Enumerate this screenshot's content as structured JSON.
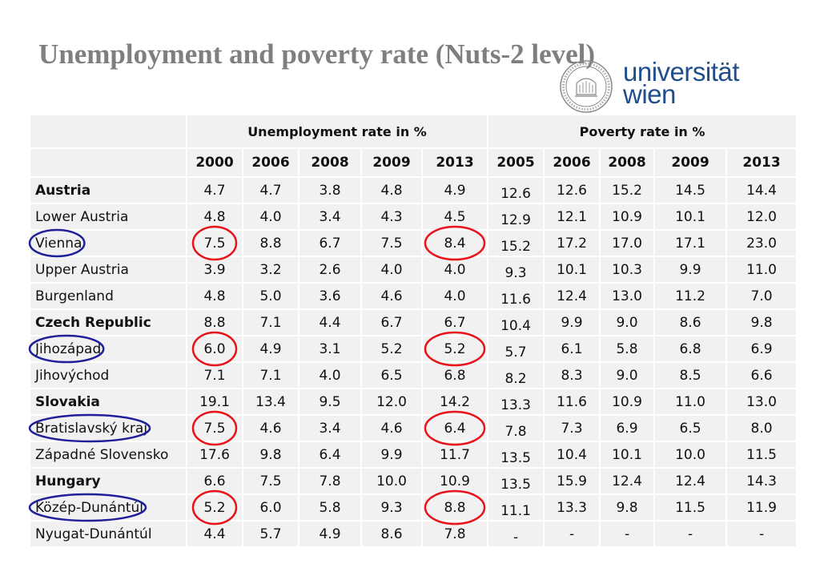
{
  "title": "Unemployment and poverty rate (Nuts-2 level)",
  "logo": {
    "line1": "universität",
    "line2": "wien"
  },
  "table": {
    "group_unemployment": "Unemployment rate in %",
    "group_poverty": "Poverty rate in %",
    "unemployment_years": [
      "2000",
      "2006",
      "2008",
      "2009",
      "2013"
    ],
    "poverty_years": [
      "2005",
      "2006",
      "2008",
      "2009",
      "2013"
    ],
    "rows": [
      {
        "region": "Austria",
        "bold": true,
        "unemployment": [
          "4.7",
          "4.7",
          "3.8",
          "4.8",
          "4.9"
        ],
        "poverty": [
          "12.6",
          "12.6",
          "15.2",
          "14.5",
          "14.4"
        ]
      },
      {
        "region": "Lower Austria",
        "bold": false,
        "unemployment": [
          "4.8",
          "4.0",
          "3.4",
          "4.3",
          "4.5"
        ],
        "poverty": [
          "12.9",
          "12.1",
          "10.9",
          "10.1",
          "12.0"
        ]
      },
      {
        "region": "Vienna",
        "bold": false,
        "unemployment": [
          "7.5",
          "8.8",
          "6.7",
          "7.5",
          "8.4"
        ],
        "poverty": [
          "15.2",
          "17.2",
          "17.0",
          "17.1",
          "23.0"
        ]
      },
      {
        "region": "Upper Austria",
        "bold": false,
        "unemployment": [
          "3.9",
          "3.2",
          "2.6",
          "4.0",
          "4.0"
        ],
        "poverty": [
          "9.3",
          "10.1",
          "10.3",
          "9.9",
          "11.0"
        ]
      },
      {
        "region": "Burgenland",
        "bold": false,
        "unemployment": [
          "4.8",
          "5.0",
          "3.6",
          "4.6",
          "4.0"
        ],
        "poverty": [
          "11.6",
          "12.4",
          "13.0",
          "11.2",
          "7.0"
        ]
      },
      {
        "region": "Czech Republic",
        "bold": true,
        "unemployment": [
          "8.8",
          "7.1",
          "4.4",
          "6.7",
          "6.7"
        ],
        "poverty": [
          "10.4",
          "9.9",
          "9.0",
          "8.6",
          "9.8"
        ]
      },
      {
        "region": "Jihozápad",
        "bold": false,
        "unemployment": [
          "6.0",
          "4.9",
          "3.1",
          "5.2",
          "5.2"
        ],
        "poverty": [
          "5.7",
          "6.1",
          "5.8",
          "6.8",
          "6.9"
        ]
      },
      {
        "region": "Jihovýchod",
        "bold": false,
        "unemployment": [
          "7.1",
          "7.1",
          "4.0",
          "6.5",
          "6.8"
        ],
        "poverty": [
          "8.2",
          "8.3",
          "9.0",
          "8.5",
          "6.6"
        ]
      },
      {
        "region": "Slovakia",
        "bold": true,
        "unemployment": [
          "19.1",
          "13.4",
          "9.5",
          "12.0",
          "14.2"
        ],
        "poverty": [
          "13.3",
          "11.6",
          "10.9",
          "11.0",
          "13.0"
        ]
      },
      {
        "region": "Bratislavský kraj",
        "bold": false,
        "unemployment": [
          "7.5",
          "4.6",
          "3.4",
          "4.6",
          "6.4"
        ],
        "poverty": [
          "7.8",
          "7.3",
          "6.9",
          "6.5",
          "8.0"
        ]
      },
      {
        "region": "Západné Slovensko",
        "bold": false,
        "unemployment": [
          "17.6",
          "9.8",
          "6.4",
          "9.9",
          "11.7"
        ],
        "poverty": [
          "13.5",
          "10.4",
          "10.1",
          "10.0",
          "11.5"
        ]
      },
      {
        "region": "Hungary",
        "bold": true,
        "unemployment": [
          "6.6",
          "7.5",
          "7.8",
          "10.0",
          "10.9"
        ],
        "poverty": [
          "13.5",
          "15.9",
          "12.4",
          "12.4",
          "14.3"
        ]
      },
      {
        "region": "Közép-Dunántúl",
        "bold": false,
        "unemployment": [
          "5.2",
          "6.0",
          "5.8",
          "9.3",
          "8.8"
        ],
        "poverty": [
          "11.1",
          "13.3",
          "9.8",
          "11.5",
          "11.9"
        ]
      },
      {
        "region": "Nyugat-Dunántúl",
        "bold": false,
        "unemployment": [
          "4.4",
          "5.7",
          "4.9",
          "8.6",
          "7.8"
        ],
        "poverty": [
          "-",
          "-",
          "-",
          "-",
          "-"
        ]
      }
    ]
  },
  "colors": {
    "title": "#7f7f7f",
    "logo": "#1f4e8c",
    "blue_circle": "#1f1f9a",
    "red_circle": "#e8121a",
    "cell_bg": "#f1f1f1"
  },
  "highlighted_rows": [
    "Vienna",
    "Jihozápad",
    "Bratislavský kraj",
    "Közép-Dunántúl"
  ]
}
